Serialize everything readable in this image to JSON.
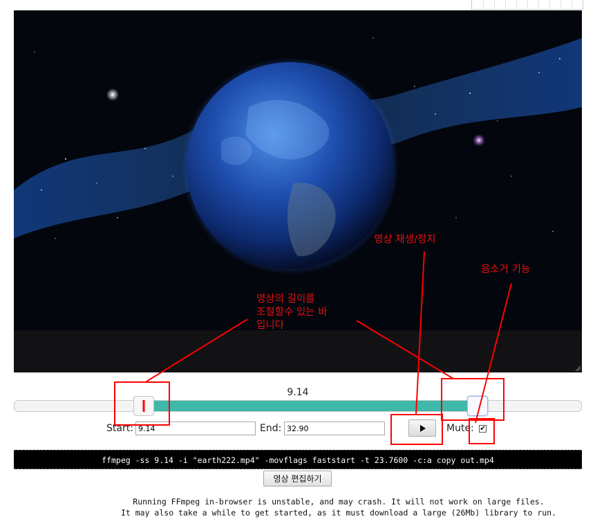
{
  "video": {
    "title": "earth222.mp4"
  },
  "slider": {
    "current_time": "9.14"
  },
  "controls": {
    "start_label": "Start:",
    "start_value": "9.14",
    "end_label": "End:",
    "end_value": "32.90",
    "mute_label": "Mute:",
    "mute_checked": true
  },
  "command": "ffmpeg -ss 9.14 -i \"earth222.mp4\" -movflags faststart -t 23.7600 -c:a copy out.mp4",
  "edit_button_label": "영상 편집하기",
  "notice": {
    "line1": "Running FFmpeg in-browser is unstable, and may crash. It will not work on large files.",
    "line2": "It may also take a while to get started, as it must download a large (26Mb) library to run."
  },
  "annotations": {
    "play_stop": "영상 재생/정지",
    "mute": "음소거 기능",
    "length_line1": "영상의 길이를",
    "length_line2": "조절할수 있는 바",
    "length_line3": "입니다"
  },
  "colors": {
    "range_fill": "#3fb8a9",
    "annotation_red": "#ff0000"
  }
}
